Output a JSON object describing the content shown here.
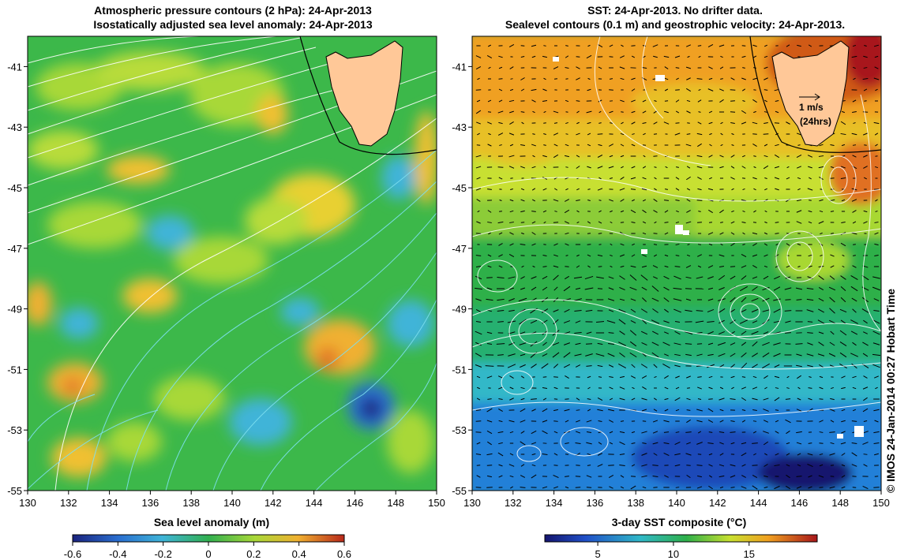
{
  "left_panel": {
    "title_line1": "Atmospheric pressure contours (2 hPa): 24-Apr-2013",
    "title_line2": "Isostatically adjusted sea level anomaly: 24-Apr-2013",
    "x_ticks": [
      "130",
      "132",
      "134",
      "136",
      "138",
      "140",
      "142",
      "144",
      "146",
      "148",
      "150"
    ],
    "y_ticks": [
      "-41",
      "-43",
      "-45",
      "-47",
      "-49",
      "-51",
      "-53",
      "-55"
    ],
    "colorbar_label": "Sea level anomaly (m)",
    "colorbar_ticks": [
      "-0.6",
      "-0.4",
      "-0.2",
      "0",
      "0.2",
      "0.4",
      "0.6"
    ],
    "colors": {
      "low": "#2a3a9a",
      "mid_low": "#3fb4d8",
      "mid": "#3cb84a",
      "mid_high": "#9ed83a",
      "high": "#f0b030",
      "top": "#c83a1a"
    }
  },
  "right_panel": {
    "title_line1": "SST: 24-Apr-2013. No drifter data.",
    "title_line2": "Sealevel contours (0.1 m) and geostrophic velocity: 24-Apr-2013.",
    "x_ticks": [
      "130",
      "132",
      "134",
      "136",
      "138",
      "140",
      "142",
      "144",
      "146",
      "148",
      "150"
    ],
    "y_ticks": [
      "-41",
      "-43",
      "-45",
      "-47",
      "-49",
      "-51",
      "-53",
      "-55"
    ],
    "colorbar_label": "3-day SST composite (°C)",
    "colorbar_ticks": [
      "5",
      "10",
      "15"
    ],
    "arrow_label": "1 m/s",
    "arrow_sublabel": "(24hrs)"
  },
  "credit": "© IMOS 24-Jan-2014 00:27 Hobart Time",
  "map_extent": {
    "lon_min": 130,
    "lon_max": 150,
    "lat_min": -55,
    "lat_max": -40
  }
}
